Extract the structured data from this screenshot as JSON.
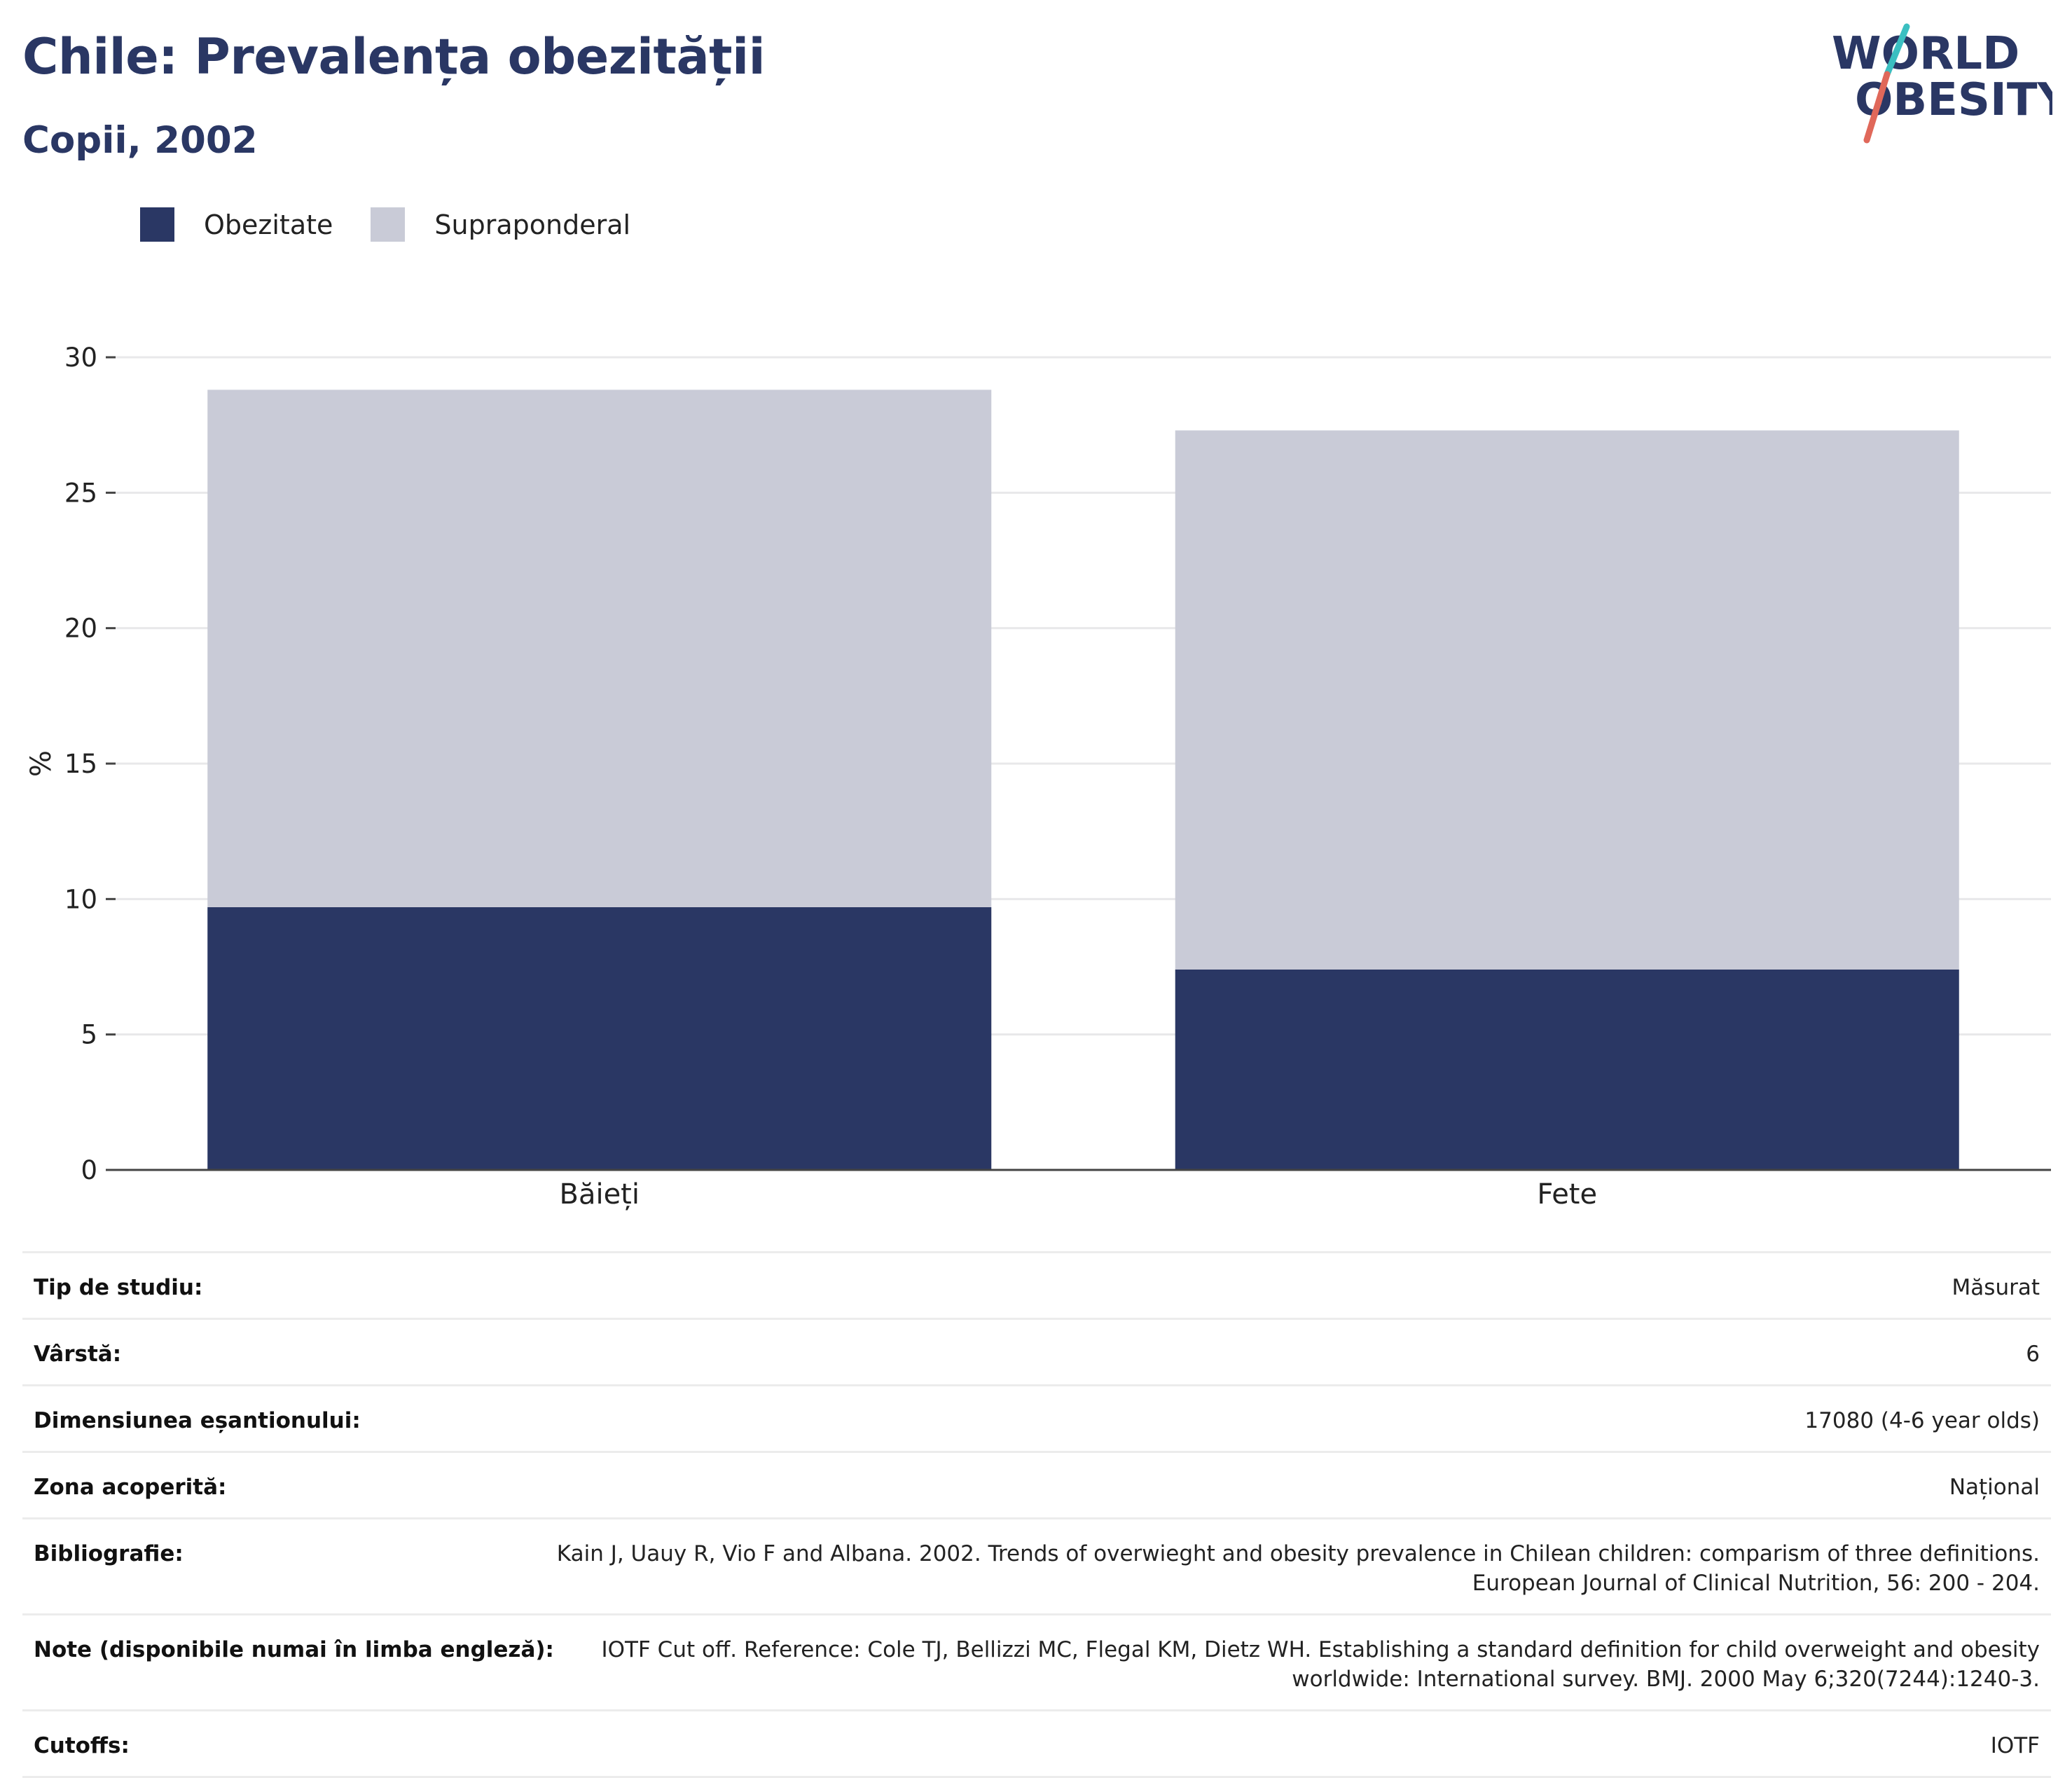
{
  "header": {
    "title": "Chile: Prevalența obezității",
    "subtitle": "Copii, 2002"
  },
  "logo": {
    "line1": "WORLD",
    "line2": "OBESITY"
  },
  "colors": {
    "obezitate": "#2a3764",
    "supraponderal": "#c9cbd7",
    "text": "#2a3764"
  },
  "chart_data": {
    "type": "bar",
    "stacked": true,
    "categories": [
      "Băieți",
      "Fete"
    ],
    "series": [
      {
        "name": "Obezitate",
        "values": [
          9.7,
          7.4
        ]
      },
      {
        "name": "Supraponderal",
        "values": [
          19.1,
          19.9
        ]
      }
    ],
    "ylabel": "%",
    "xlabel": "",
    "ylim": [
      0,
      30
    ],
    "yticks": [
      "0",
      "5",
      "10",
      "15",
      "20",
      "25",
      "30"
    ],
    "grid": true,
    "legend_position": "top-left"
  },
  "info": [
    {
      "label": "Tip de studiu:",
      "value": "Măsurat"
    },
    {
      "label": "Vârstă:",
      "value": "6"
    },
    {
      "label": "Dimensiunea eșantionului:",
      "value": "17080 (4-6 year olds)"
    },
    {
      "label": "Zona acoperită:",
      "value": "Național"
    },
    {
      "label": "Bibliografie:",
      "value": "Kain J, Uauy R, Vio F and Albana. 2002. Trends of overwieght and obesity prevalence in Chilean children: comparism of three definitions. European Journal of Clinical Nutrition, 56: 200 - 204."
    },
    {
      "label": "Note (disponibile numai în limba engleză):",
      "value": "IOTF Cut off. Reference: Cole TJ, Bellizzi MC, Flegal KM, Dietz WH. Establishing a standard definition for child overweight and obesity worldwide: International survey. BMJ. 2000 May 6;320(7244):1240-3."
    },
    {
      "label": "Cutoffs:",
      "value": "IOTF"
    }
  ]
}
